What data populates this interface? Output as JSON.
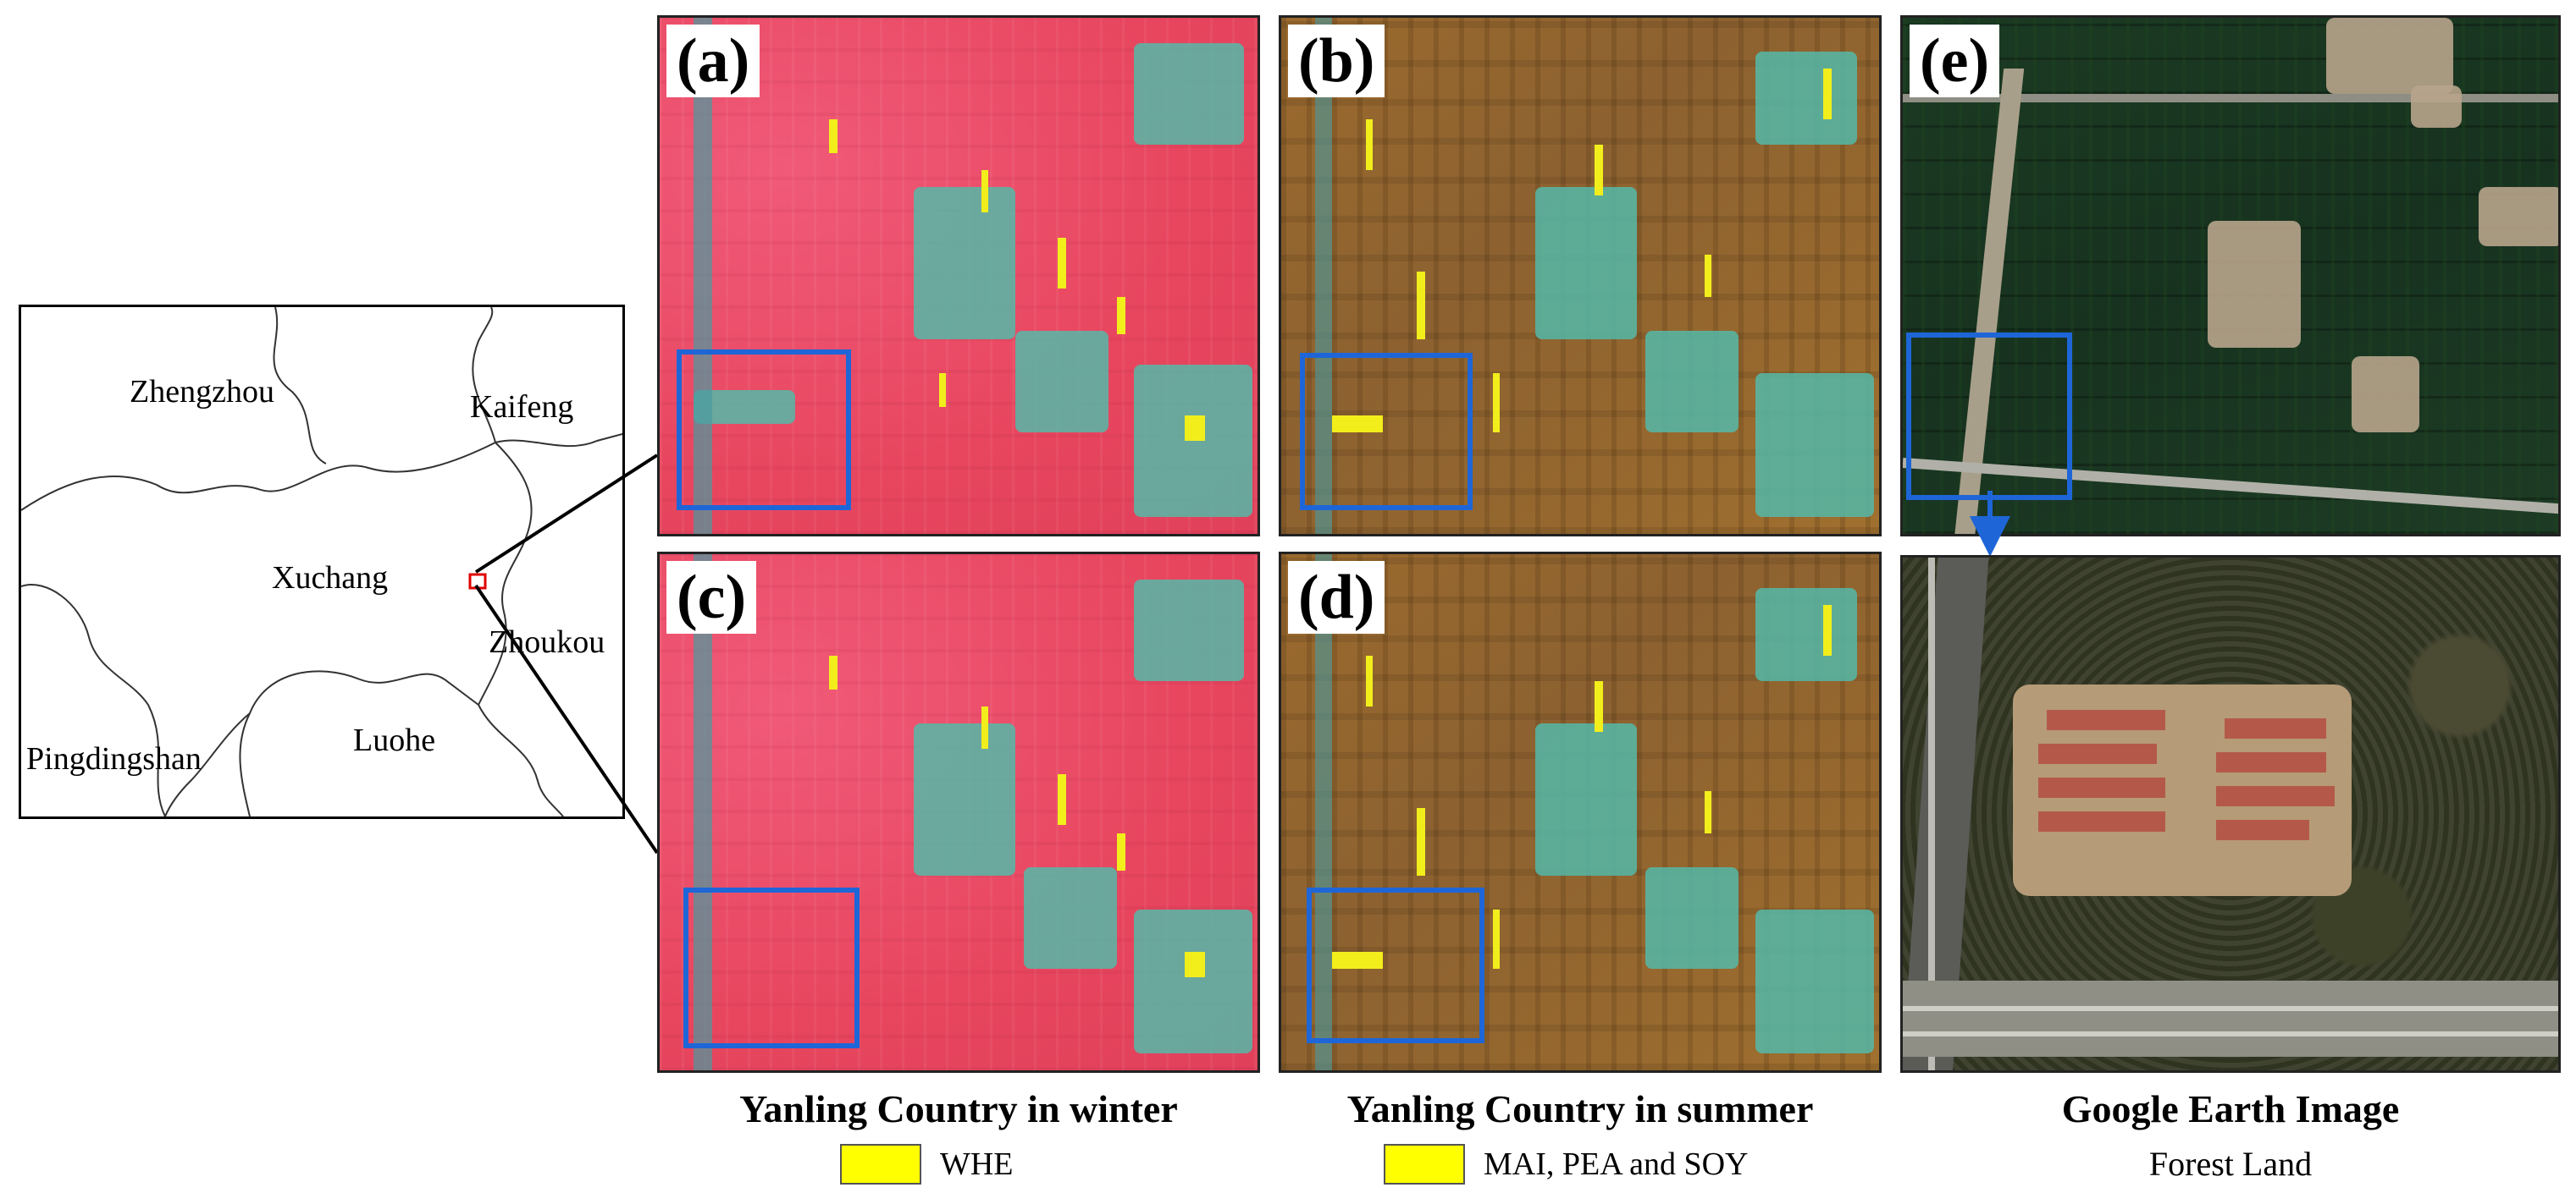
{
  "locator_map": {
    "cities": [
      "Zhengzhou",
      "Kaifeng",
      "Xuchang",
      "Zhoukou",
      "Pingdingshan",
      "Luohe"
    ]
  },
  "panels": {
    "a": "(a)",
    "b": "(b)",
    "c": "(c)",
    "d": "(d)",
    "e": "(e)"
  },
  "captions": {
    "winter": "Yanling Country in winter",
    "summer": "Yanling Country in summer",
    "google": "Google Earth Image"
  },
  "legend": {
    "winter_item": "WHE",
    "summer_item": "MAI, PEA and SOY",
    "google_item": "Forest Land",
    "swatch_color": "#ffff00",
    "box_color": "#1e66d8",
    "study_area_marker_color": "#e00000"
  }
}
